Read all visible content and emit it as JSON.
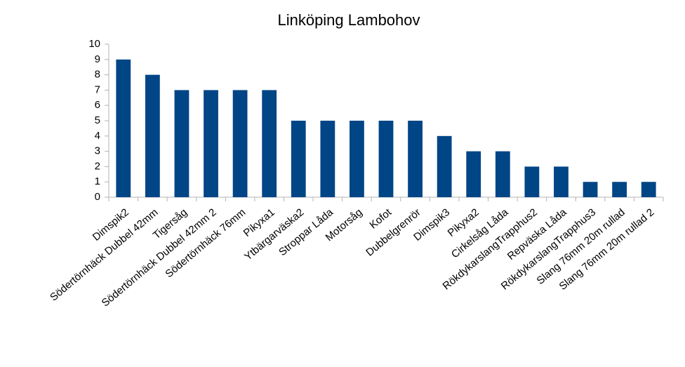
{
  "chart_data": {
    "type": "bar",
    "title": "Linköping Lambohov",
    "categories": [
      "Dimspik2",
      "Södertörnhäck Dubbel 42mm",
      "Tigersåg",
      "Södertörnhäck Dubbel 42mm 2",
      "Södertörnhäck 76mm",
      "Pikyxa1",
      "Ytbärgarväska2",
      "Stroppar Låda",
      "Motorsåg",
      "Kofot",
      "Dubbelgrenrör",
      "Dimspik3",
      "Pikyxa2",
      "Cirkelsåg Låda",
      "RökdykarslangTrapphus2",
      "Repväska Låda",
      "RökdykarslangTrapphus3",
      "Slang 76mm 20m rullad",
      "Slang 76mm 20m rullad 2"
    ],
    "values": [
      9,
      8,
      7,
      7,
      7,
      7,
      5,
      5,
      5,
      5,
      5,
      4,
      3,
      3,
      2,
      2,
      1,
      1,
      1
    ],
    "color": "#004586",
    "ylim": [
      0,
      10
    ],
    "yticks": [
      0,
      1,
      2,
      3,
      4,
      5,
      6,
      7,
      8,
      9,
      10
    ],
    "grid": false
  }
}
